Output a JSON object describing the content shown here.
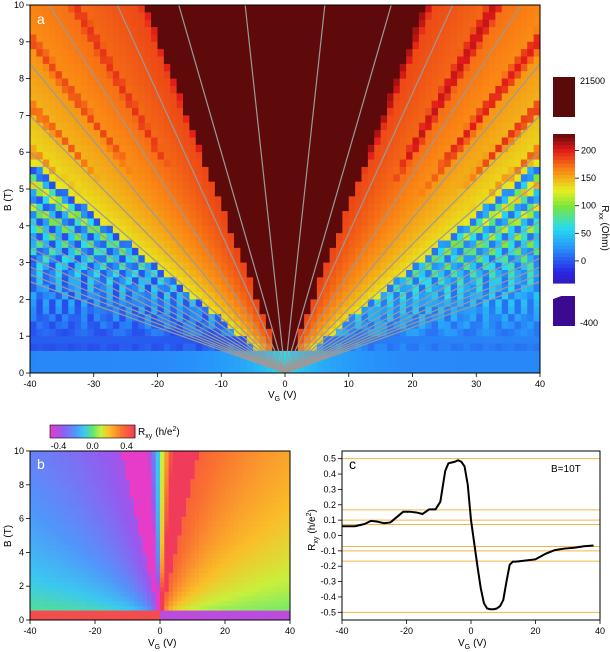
{
  "chart_data": [
    {
      "type": "heatmap",
      "panel_label": "a",
      "xlabel": "V",
      "xlabel_sub": "G",
      "xlabel_unit": "(V)",
      "ylabel": "B (T)",
      "xlim": [
        -40,
        40
      ],
      "ylim": [
        0,
        10
      ],
      "xticks": [
        -40,
        -30,
        -20,
        -10,
        0,
        10,
        20,
        30,
        40
      ],
      "yticks": [
        0,
        1,
        2,
        3,
        4,
        5,
        6,
        7,
        8,
        9,
        10
      ],
      "fan_slopes_T_per_V": [
        -1.6,
        -0.6,
        -0.38,
        -0.27,
        -0.21,
        -0.175,
        -0.15,
        -0.13,
        -0.115,
        -0.103,
        -0.093,
        -0.085,
        -0.078,
        -0.072,
        -0.067,
        -0.062,
        0.062,
        0.067,
        0.072,
        0.078,
        0.085,
        0.093,
        0.103,
        0.115,
        0.13,
        0.15,
        0.175,
        0.21,
        0.27,
        0.38,
        0.6,
        1.6
      ],
      "colorbar": {
        "label": "R",
        "label_sub": "xx",
        "label_unit": "(Ohm)",
        "ticks_main": [
          0,
          50,
          100,
          150,
          200
        ],
        "tick_top": "21500",
        "tick_bottom": "-400",
        "range_main": [
          -40,
          230
        ]
      }
    },
    {
      "type": "heatmap",
      "panel_label": "b",
      "xlabel": "V",
      "xlabel_sub": "G",
      "xlabel_unit": "(V)",
      "ylabel": "B (T)",
      "xlim": [
        -40,
        40
      ],
      "ylim": [
        0,
        10
      ],
      "xticks": [
        -40,
        -20,
        0,
        20,
        40
      ],
      "yticks": [
        0,
        2,
        4,
        6,
        8,
        10
      ],
      "colorbar": {
        "label": "R",
        "label_sub": "xy",
        "label_unit": "(h/e",
        "label_unit_sup": "2",
        "label_unit_end": ")",
        "ticks": [
          "-0.4",
          "0.0",
          "0.4"
        ],
        "range": [
          -0.5,
          0.5
        ]
      }
    },
    {
      "type": "line",
      "panel_label": "c",
      "annotation": "B=10T",
      "xlabel": "V",
      "xlabel_sub": "G",
      "xlabel_unit": "(V)",
      "ylabel": "R",
      "ylabel_sub": "xy",
      "ylabel_unit": "(h/e",
      "ylabel_unit_sup": "2",
      "ylabel_unit_end": ")",
      "xlim": [
        -40,
        40
      ],
      "ylim": [
        -0.55,
        0.55
      ],
      "xticks": [
        -40,
        -20,
        0,
        20,
        40
      ],
      "yticks": [
        -0.5,
        -0.4,
        -0.3,
        -0.2,
        -0.1,
        0.0,
        0.1,
        0.2,
        0.3,
        0.4,
        0.5
      ],
      "ytick_labels": [
        "-0.5",
        "-0.4",
        "-0.3",
        "-0.2",
        "-0.1",
        "0.0",
        "0.1",
        "0.2",
        "0.3",
        "0.4",
        "0.5"
      ],
      "reference_levels": [
        0.5,
        0.1667,
        0.1,
        0.0714,
        -0.0714,
        -0.1,
        -0.1667,
        -0.5
      ],
      "reference_color": "#f0b64a",
      "curve_color": "#000000",
      "x": [
        -40,
        -36,
        -33,
        -31,
        -29,
        -27,
        -25,
        -23,
        -21,
        -19,
        -17,
        -15,
        -13,
        -11,
        -9.5,
        -8,
        -7,
        -6,
        -5,
        -4,
        -3,
        -2,
        -1,
        0,
        1,
        2,
        3,
        4,
        5,
        6,
        7,
        8,
        9,
        10,
        11,
        12,
        13,
        14,
        16,
        18,
        20,
        23,
        26,
        29,
        32,
        35,
        38
      ],
      "y": [
        0.06,
        0.06,
        0.075,
        0.095,
        0.09,
        0.08,
        0.085,
        0.12,
        0.155,
        0.155,
        0.15,
        0.14,
        0.17,
        0.17,
        0.22,
        0.42,
        0.47,
        0.475,
        0.48,
        0.49,
        0.48,
        0.45,
        0.33,
        0.1,
        -0.05,
        -0.2,
        -0.34,
        -0.44,
        -0.475,
        -0.48,
        -0.48,
        -0.475,
        -0.46,
        -0.42,
        -0.3,
        -0.19,
        -0.17,
        -0.17,
        -0.165,
        -0.16,
        -0.155,
        -0.12,
        -0.095,
        -0.085,
        -0.08,
        -0.07,
        -0.065
      ]
    }
  ]
}
